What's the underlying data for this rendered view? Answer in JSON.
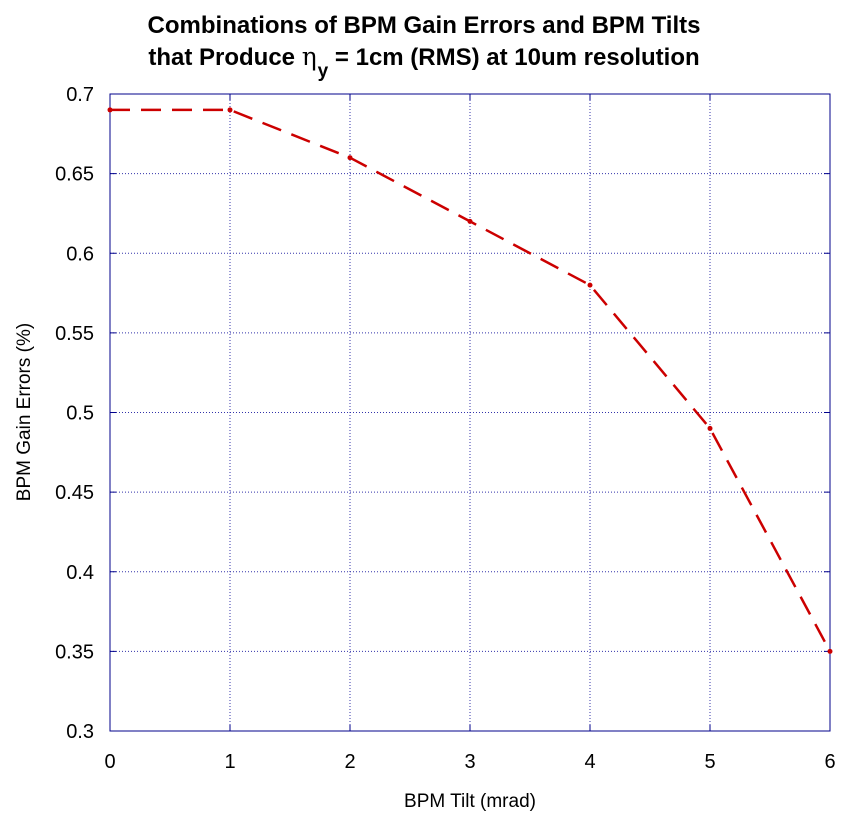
{
  "chart_data": {
    "type": "line",
    "title_line1": "Combinations of BPM Gain Errors and BPM Tilts",
    "title_line2_before": "that Produce ",
    "title_symbol": "η",
    "title_subscript": "y",
    "title_line2_after": " = 1cm (RMS) at 10um resolution",
    "xlabel": "BPM Tilt (mrad)",
    "ylabel": "BPM Gain Errors (%)",
    "xlim": [
      0,
      6
    ],
    "ylim": [
      0.3,
      0.7
    ],
    "xticks": [
      "0",
      "1",
      "2",
      "3",
      "4",
      "5",
      "6"
    ],
    "yticks": [
      "0.3",
      "0.35",
      "0.4",
      "0.45",
      "0.5",
      "0.55",
      "0.6",
      "0.65",
      "0.7"
    ],
    "grid": true,
    "series": [
      {
        "x": [
          0,
          1,
          2,
          3,
          4,
          5,
          6
        ],
        "y": [
          0.69,
          0.69,
          0.66,
          0.62,
          0.58,
          0.49,
          0.35
        ],
        "line_style": "dashed",
        "color": "#cc0000"
      }
    ],
    "colors": {
      "axes": "#00008b",
      "grid": "#3333aa",
      "series": "#cc0000"
    }
  }
}
